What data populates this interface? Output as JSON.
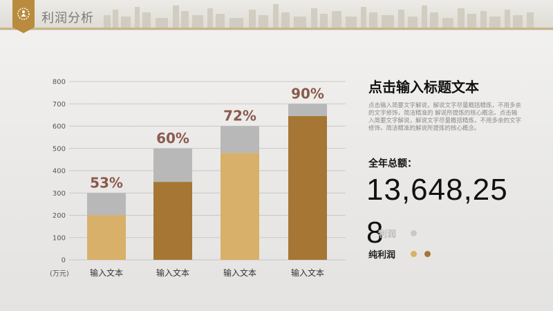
{
  "header": {
    "title": "利润分析"
  },
  "colors": {
    "gray_series": "#b8b8b8",
    "light_gold": "#d8b06a",
    "dark_gold": "#a57634",
    "pct_text": "#8a5a4e",
    "grid": "#c8c8c8"
  },
  "chart_data": {
    "type": "bar",
    "stacked": true,
    "categories": [
      "输入文本",
      "输入文本",
      "输入文本",
      "输入文本"
    ],
    "series": [
      {
        "values": [
          200,
          350,
          480,
          645
        ]
      },
      {
        "values": [
          100,
          150,
          120,
          55
        ]
      }
    ],
    "percent_labels": [
      "53%",
      "60%",
      "72%",
      "90%"
    ],
    "y_ticks": [
      "0",
      "100",
      "200",
      "300",
      "400",
      "500",
      "600",
      "700",
      "800"
    ],
    "ylabel": "(万元)",
    "ylim": [
      0,
      800
    ],
    "grid": true
  },
  "panel": {
    "title": "点击输入标题文本",
    "body": "点击输入简要文字解说，解说文字尽量概括精炼，不用多余的文字修饰，简洁精准的 解说所提炼的核心概念。点击输入简要文字解说，解说文字尽量概括精炼，不用多余的文字修饰，简洁精准的解说所提炼的核心概念。",
    "total_label": "全年总额：",
    "total_value_line1": "13,648,25",
    "total_value_line2": "8",
    "legend": [
      {
        "label": "利润",
        "dots": [
          "#c8c8c8"
        ]
      },
      {
        "label": "纯利润",
        "dots": [
          "#d8b06a",
          "#a57634"
        ]
      }
    ]
  }
}
